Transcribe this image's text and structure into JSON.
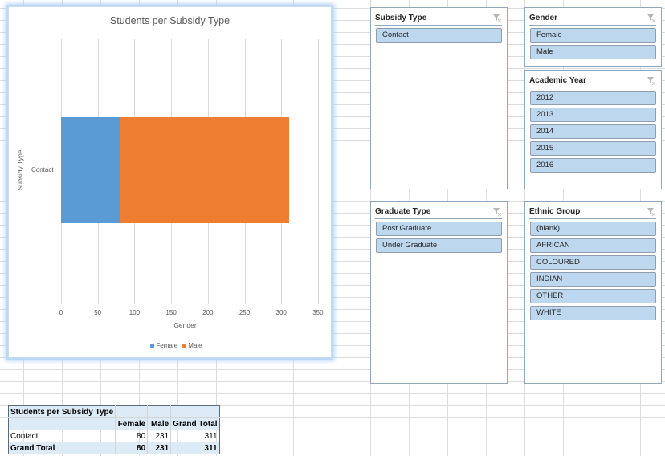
{
  "chart": {
    "title": "Students per Subsidy Type",
    "x_axis_title": "Gender",
    "y_axis_title": "Subsidy Type",
    "category_label": "Contact",
    "ticks": [
      "0",
      "50",
      "100",
      "150",
      "200",
      "250",
      "300",
      "350"
    ],
    "legend": [
      {
        "label": "Female",
        "color": "#5b9bd5"
      },
      {
        "label": "Male",
        "color": "#ed7d31"
      }
    ]
  },
  "chart_data": {
    "type": "bar",
    "orientation": "horizontal",
    "stacked": true,
    "title": "Students per Subsidy Type",
    "categories": [
      "Contact"
    ],
    "series": [
      {
        "name": "Female",
        "values": [
          80
        ],
        "color": "#5b9bd5"
      },
      {
        "name": "Male",
        "values": [
          231
        ],
        "color": "#ed7d31"
      }
    ],
    "xlabel": "Gender",
    "ylabel": "Subsidy Type",
    "xlim": [
      0,
      350
    ],
    "xticks": [
      0,
      50,
      100,
      150,
      200,
      250,
      300,
      350
    ],
    "grid": true,
    "legend_position": "bottom"
  },
  "pivot": {
    "title": "Students per Subsidy Type",
    "columns": [
      "Female",
      "Male",
      "Grand Total"
    ],
    "rows": [
      {
        "label": "Contact",
        "values": [
          "80",
          "231",
          "311"
        ]
      }
    ],
    "grand_total": {
      "label": "Grand Total",
      "values": [
        "80",
        "231",
        "311"
      ]
    }
  },
  "slicers": {
    "subsidy_type": {
      "title": "Subsidy Type",
      "items": [
        "Contact"
      ]
    },
    "gender": {
      "title": "Gender",
      "items": [
        "Female",
        "Male"
      ]
    },
    "academic_year": {
      "title": "Academic Year",
      "items": [
        "2012",
        "2013",
        "2014",
        "2015",
        "2016"
      ]
    },
    "graduate_type": {
      "title": "Graduate Type",
      "items": [
        "Post Graduate",
        "Under Graduate"
      ]
    },
    "ethnic_group": {
      "title": "Ethnic Group",
      "items": [
        "(blank)",
        "AFRICAN",
        "COLOURED",
        "INDIAN",
        "OTHER",
        "WHITE"
      ]
    }
  }
}
